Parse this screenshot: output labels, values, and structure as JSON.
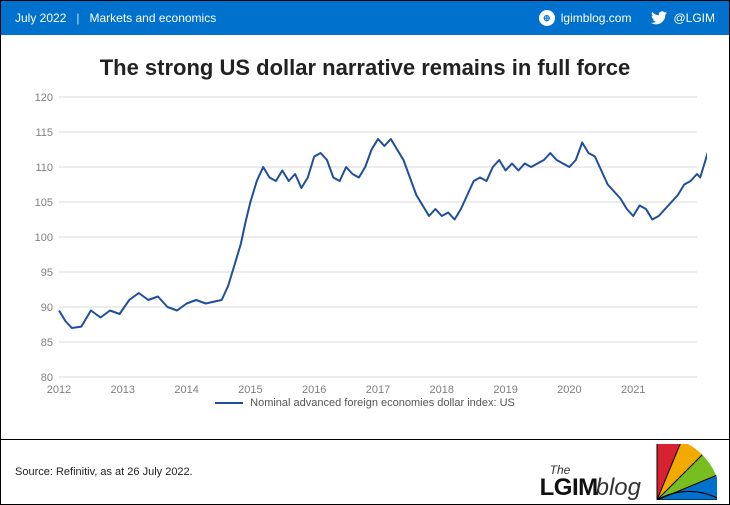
{
  "header": {
    "date": "July 2022",
    "category": "Markets and economics",
    "site": "lgimblog.com",
    "twitter": "@LGIM",
    "bg_color": "#0072ce",
    "text_color": "#ffffff"
  },
  "title": "The strong US dollar narrative remains in full force",
  "title_fontsize": 22,
  "chart": {
    "type": "line",
    "series_name": "Nominal advanced foreign economies dollar index: US",
    "line_color": "#1f4e9c",
    "line_width": 2,
    "background_color": "#ffffff",
    "grid_color": "#d9d9d9",
    "axis_text_color": "#808080",
    "axis_fontsize": 11,
    "ylim": [
      80,
      120
    ],
    "ytick_step": 5,
    "yticks": [
      80,
      85,
      90,
      95,
      100,
      105,
      110,
      115,
      120
    ],
    "xlim": [
      2012,
      2022
    ],
    "xticks": [
      2012,
      2013,
      2014,
      2015,
      2016,
      2017,
      2018,
      2019,
      2020,
      2021
    ],
    "data": [
      [
        2012.0,
        89.5
      ],
      [
        2012.1,
        88.0
      ],
      [
        2012.2,
        87.0
      ],
      [
        2012.35,
        87.2
      ],
      [
        2012.5,
        89.5
      ],
      [
        2012.65,
        88.5
      ],
      [
        2012.8,
        89.5
      ],
      [
        2012.95,
        89.0
      ],
      [
        2013.1,
        91.0
      ],
      [
        2013.25,
        92.0
      ],
      [
        2013.4,
        91.0
      ],
      [
        2013.55,
        91.5
      ],
      [
        2013.7,
        90.0
      ],
      [
        2013.85,
        89.5
      ],
      [
        2014.0,
        90.5
      ],
      [
        2014.15,
        91.0
      ],
      [
        2014.3,
        90.5
      ],
      [
        2014.45,
        90.8
      ],
      [
        2014.55,
        91.0
      ],
      [
        2014.65,
        93.0
      ],
      [
        2014.75,
        96.0
      ],
      [
        2014.85,
        99.0
      ],
      [
        2014.92,
        102.0
      ],
      [
        2015.0,
        105.0
      ],
      [
        2015.1,
        108.0
      ],
      [
        2015.2,
        110.0
      ],
      [
        2015.3,
        108.5
      ],
      [
        2015.4,
        108.0
      ],
      [
        2015.5,
        109.5
      ],
      [
        2015.6,
        108.0
      ],
      [
        2015.7,
        109.0
      ],
      [
        2015.8,
        107.0
      ],
      [
        2015.9,
        108.5
      ],
      [
        2016.0,
        111.5
      ],
      [
        2016.1,
        112.0
      ],
      [
        2016.2,
        111.0
      ],
      [
        2016.3,
        108.5
      ],
      [
        2016.4,
        108.0
      ],
      [
        2016.5,
        110.0
      ],
      [
        2016.6,
        109.0
      ],
      [
        2016.7,
        108.5
      ],
      [
        2016.8,
        110.0
      ],
      [
        2016.9,
        112.5
      ],
      [
        2017.0,
        114.0
      ],
      [
        2017.1,
        113.0
      ],
      [
        2017.2,
        114.0
      ],
      [
        2017.3,
        112.5
      ],
      [
        2017.4,
        111.0
      ],
      [
        2017.5,
        108.5
      ],
      [
        2017.6,
        106.0
      ],
      [
        2017.7,
        104.5
      ],
      [
        2017.8,
        103.0
      ],
      [
        2017.9,
        104.0
      ],
      [
        2018.0,
        103.0
      ],
      [
        2018.1,
        103.5
      ],
      [
        2018.2,
        102.5
      ],
      [
        2018.3,
        104.0
      ],
      [
        2018.4,
        106.0
      ],
      [
        2018.5,
        108.0
      ],
      [
        2018.6,
        108.5
      ],
      [
        2018.7,
        108.0
      ],
      [
        2018.8,
        110.0
      ],
      [
        2018.9,
        111.0
      ],
      [
        2019.0,
        109.5
      ],
      [
        2019.1,
        110.5
      ],
      [
        2019.2,
        109.5
      ],
      [
        2019.3,
        110.5
      ],
      [
        2019.4,
        110.0
      ],
      [
        2019.5,
        110.5
      ],
      [
        2019.6,
        111.0
      ],
      [
        2019.7,
        112.0
      ],
      [
        2019.8,
        111.0
      ],
      [
        2019.9,
        110.5
      ],
      [
        2020.0,
        110.0
      ],
      [
        2020.1,
        111.0
      ],
      [
        2020.2,
        113.5
      ],
      [
        2020.3,
        112.0
      ],
      [
        2020.4,
        111.5
      ],
      [
        2020.5,
        109.5
      ],
      [
        2020.6,
        107.5
      ],
      [
        2020.7,
        106.5
      ],
      [
        2020.8,
        105.5
      ],
      [
        2020.9,
        104.0
      ],
      [
        2021.0,
        103.0
      ],
      [
        2021.1,
        104.5
      ],
      [
        2021.2,
        104.0
      ],
      [
        2021.3,
        102.5
      ],
      [
        2021.4,
        103.0
      ],
      [
        2021.5,
        104.0
      ],
      [
        2021.6,
        105.0
      ],
      [
        2021.7,
        106.0
      ],
      [
        2021.8,
        107.5
      ],
      [
        2021.9,
        108.0
      ],
      [
        2022.0,
        109.0
      ],
      [
        2022.05,
        108.5
      ],
      [
        2022.1,
        110.0
      ],
      [
        2022.15,
        111.5
      ],
      [
        2022.2,
        113.0
      ],
      [
        2022.25,
        114.5
      ]
    ]
  },
  "legend_label": "Nominal advanced foreign economies dollar index: US",
  "source": "Source: Refinitiv, as at 26 July 2022.",
  "logo": {
    "the": "The",
    "main": "LGIM",
    "blog": "blog",
    "umbrella_colors": [
      "#d92231",
      "#f2a900",
      "#78be20",
      "#0072ce"
    ]
  }
}
